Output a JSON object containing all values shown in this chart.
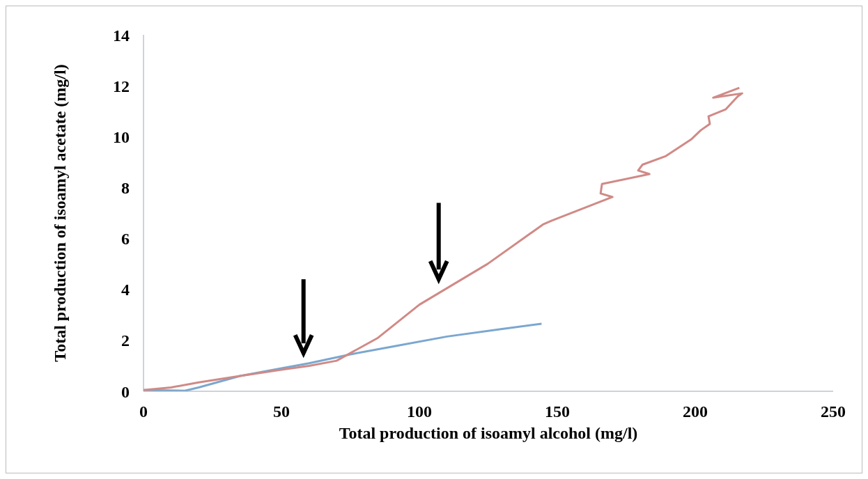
{
  "chart_data": {
    "type": "line",
    "xlabel": "Total production of isoamyl  alcohol (mg/l)",
    "ylabel": "Total production of isoamyl acetate (mg/l)",
    "xlim": [
      0,
      250
    ],
    "xticks": [
      0,
      50,
      100,
      150,
      200,
      250
    ],
    "ylim": [
      0,
      14
    ],
    "yticks": [
      0,
      2,
      4,
      6,
      8,
      10,
      12,
      14
    ],
    "grid": false,
    "marker": "none",
    "line_style": "solid",
    "series": [
      {
        "color": "#7ba7d0",
        "x": [
          0,
          15,
          20,
          35,
          50,
          60,
          75,
          90,
          110,
          130,
          144.3
        ],
        "values": [
          0.05,
          0.02,
          0.15,
          0.6,
          0.9,
          1.1,
          1.45,
          1.75,
          2.15,
          2.45,
          2.65
        ]
      },
      {
        "color": "#d08a86",
        "x": [
          0,
          10,
          20,
          35,
          50,
          60,
          70,
          75,
          85,
          100,
          124.7,
          144.8,
          148,
          170,
          165.7,
          166.2,
          183.4,
          179.3,
          180.9,
          189.4,
          198.5,
          202,
          205.3,
          204.8,
          211,
          215.4,
          217,
          206.5,
          216
        ],
        "values": [
          0.05,
          0.15,
          0.35,
          0.6,
          0.85,
          1.0,
          1.2,
          1.5,
          2.1,
          3.4,
          5.0,
          6.55,
          6.7,
          7.63,
          7.77,
          8.14,
          8.53,
          8.67,
          8.9,
          9.24,
          9.89,
          10.25,
          10.5,
          10.8,
          11.07,
          11.58,
          11.7,
          11.53,
          11.92
        ]
      }
    ]
  }
}
